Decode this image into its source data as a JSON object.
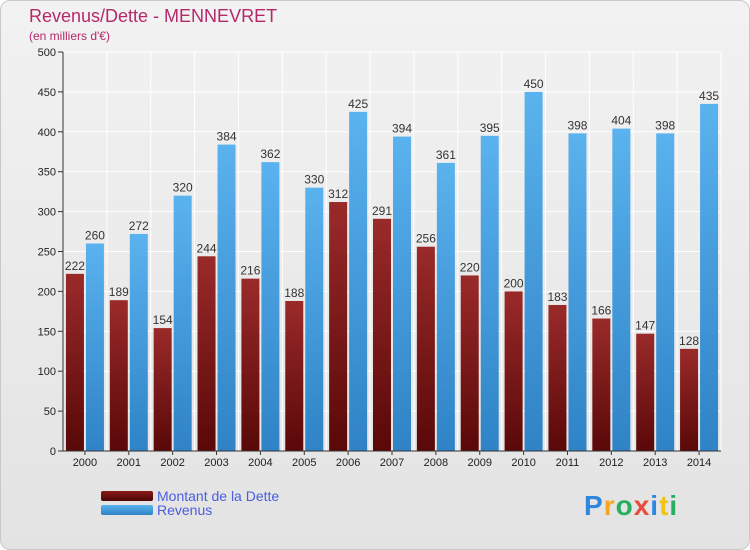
{
  "chart_data": {
    "type": "bar",
    "title": "Revenus/Dette - MENNEVRET",
    "subtitle": "(en milliers d'€)",
    "categories": [
      "2000",
      "2001",
      "2002",
      "2003",
      "2004",
      "2005",
      "2006",
      "2007",
      "2008",
      "2009",
      "2010",
      "2011",
      "2012",
      "2013",
      "2014"
    ],
    "series": [
      {
        "name": "Montant de la Dette",
        "color": "#8b1a1a",
        "values": [
          222,
          189,
          154,
          244,
          216,
          188,
          312,
          291,
          256,
          220,
          200,
          183,
          166,
          147,
          128
        ]
      },
      {
        "name": "Revenus",
        "color": "#4fa6e6",
        "values": [
          260,
          272,
          320,
          384,
          362,
          330,
          425,
          394,
          361,
          395,
          450,
          398,
          404,
          398,
          435
        ]
      }
    ],
    "ylim": [
      0,
      500
    ],
    "yticks": [
      0,
      50,
      100,
      150,
      200,
      250,
      300,
      350,
      400,
      450,
      500
    ],
    "grid": true,
    "legend_position": "bottom-left"
  },
  "logo": {
    "letters": [
      "P",
      "r",
      "o",
      "x",
      "i",
      "t",
      "i"
    ],
    "colors": [
      "#2e86de",
      "#f5a623",
      "#27ae60",
      "#e74c3c",
      "#2e86de",
      "#f1c40f",
      "#27ae60"
    ]
  }
}
